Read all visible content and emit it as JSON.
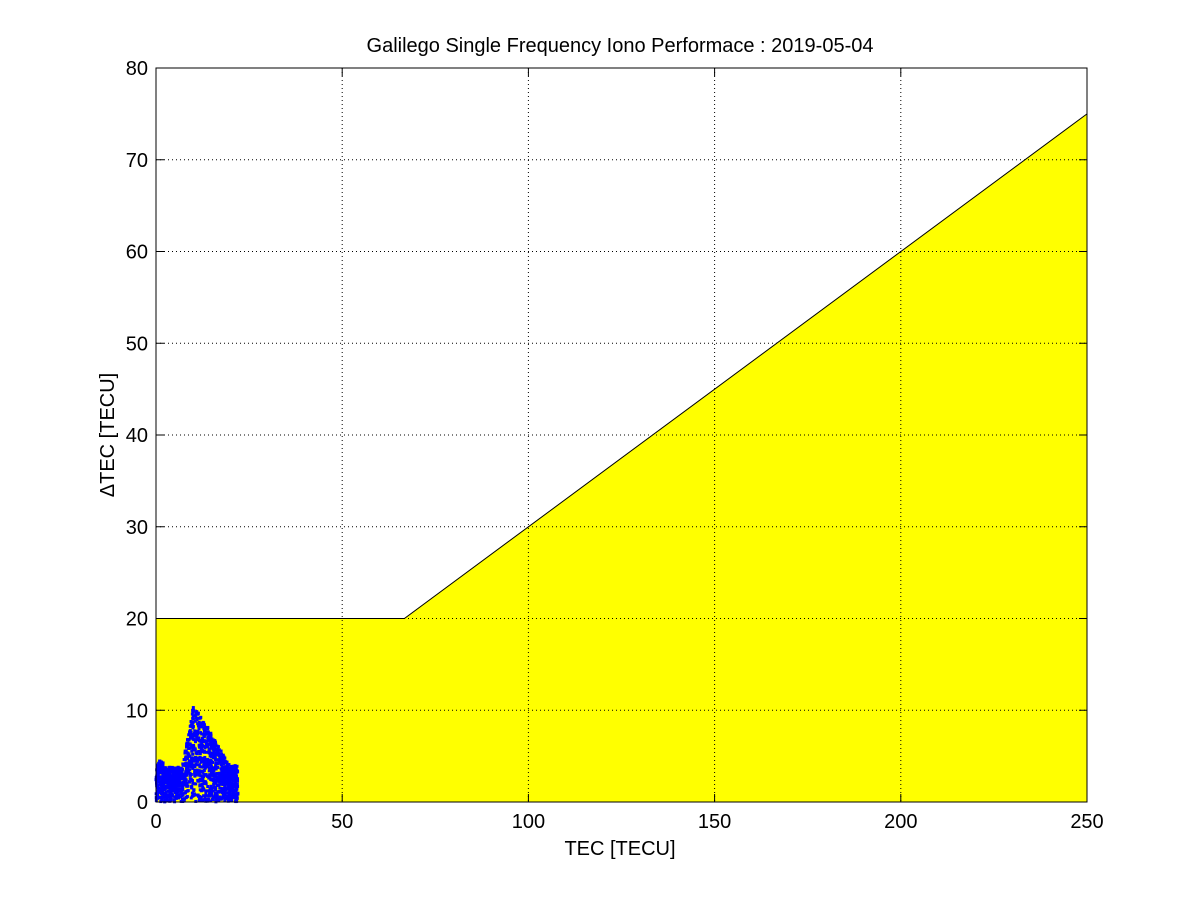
{
  "chart_data": {
    "type": "scatter",
    "title": "Galilego Single Frequency Iono Performace : 2019-05-04",
    "xlabel": "TEC [TECU]",
    "ylabel": "ΔTEC [TECU]",
    "xlim": [
      0,
      250
    ],
    "ylim": [
      0,
      80
    ],
    "xticks": [
      "0",
      "50",
      "100",
      "150",
      "200",
      "250"
    ],
    "yticks": [
      "0",
      "10",
      "20",
      "30",
      "40",
      "50",
      "60",
      "70",
      "80"
    ],
    "grid": true,
    "colors": {
      "envelope": "#ffff00",
      "points": "#0000ff",
      "grid": "#000000"
    },
    "envelope": {
      "x": [
        0,
        66.7,
        250
      ],
      "y": [
        20,
        20,
        75
      ]
    },
    "points_cluster": {
      "x_range": [
        0,
        22
      ],
      "y_range": [
        0,
        10.5
      ],
      "peak": {
        "x": 10,
        "y": 10.5
      }
    }
  }
}
